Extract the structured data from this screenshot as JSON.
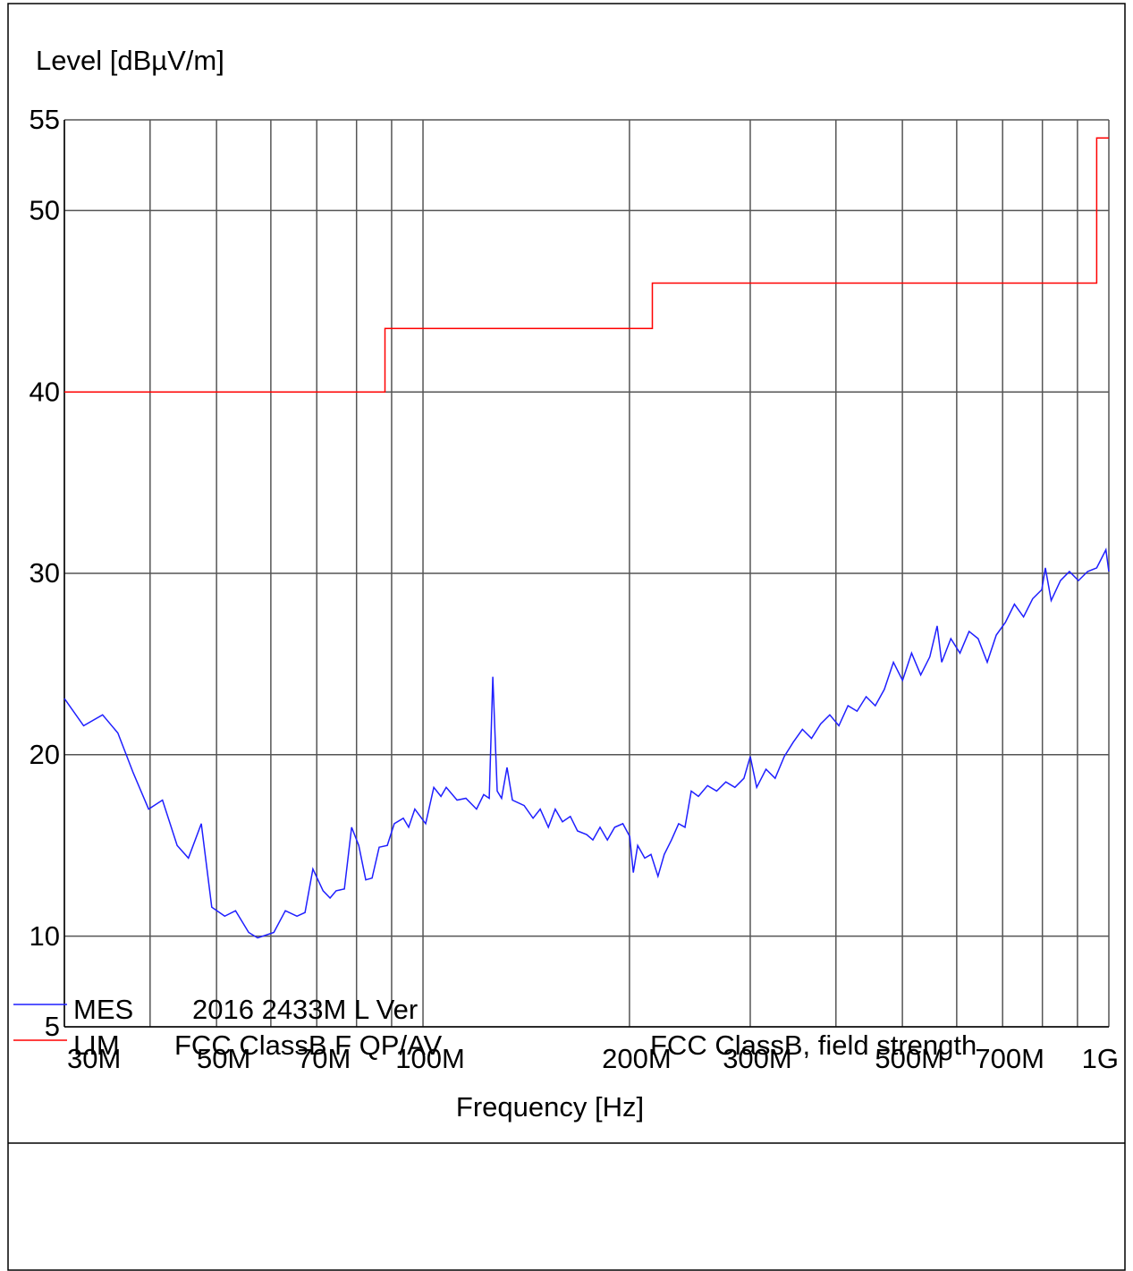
{
  "chart_data": {
    "type": "line",
    "y_label": "Level [dBµV/m]",
    "x_label": "Frequency [Hz]",
    "log_x": true,
    "grid": true,
    "xlim": [
      30000000.0,
      1000000000.0
    ],
    "xticks": [
      {
        "value": 30000000.0,
        "label": "30M"
      },
      {
        "value": 50000000.0,
        "label": "50M"
      },
      {
        "value": 70000000.0,
        "label": "70M"
      },
      {
        "value": 100000000.0,
        "label": "100M"
      },
      {
        "value": 200000000.0,
        "label": "200M"
      },
      {
        "value": 300000000.0,
        "label": "300M"
      },
      {
        "value": 500000000.0,
        "label": "500M"
      },
      {
        "value": 700000000.0,
        "label": "700M"
      },
      {
        "value": 1000000000.0,
        "label": "1G"
      }
    ],
    "minor_xticks": [
      40000000.0,
      60000000.0,
      80000000.0,
      90000000.0,
      400000000.0,
      600000000.0,
      800000000.0,
      900000000.0
    ],
    "ylim": [
      5,
      55
    ],
    "yticks": [
      5,
      10,
      20,
      30,
      40,
      50,
      55
    ],
    "series": [
      {
        "name": "MES",
        "description": "2016 2433M L Ver",
        "color": "#1f1fff",
        "x": [
          30000000.0,
          32000000.0,
          34100000.0,
          35900000.0,
          37800000.0,
          39800000.0,
          41700000.0,
          43800000.0,
          45500000.0,
          47500000.0,
          49200000.0,
          51400000.0,
          53300000.0,
          55700000.0,
          57400000.0,
          60600000.0,
          63000000.0,
          65500000.0,
          67300000.0,
          69100000.0,
          71500000.0,
          73200000.0,
          74700000.0,
          76800000.0,
          78700000.0,
          80600000.0,
          82500000.0,
          84300000.0,
          86300000.0,
          88700000.0,
          90800000.0,
          93600000.0,
          95300000.0,
          97300000.0,
          100900000.0,
          103700000.0,
          106200000.0,
          108100000.0,
          112100000.0,
          115500000.0,
          119700000.0,
          122600000.0,
          124900000.0,
          126400000.0,
          128300000.0,
          130200000.0,
          132600000.0,
          135000000.0,
          140400000.0,
          144700000.0,
          148200000.0,
          152300000.0,
          155900000.0,
          159700000.0,
          164000000.0,
          168000000.0,
          173200000.0,
          176900000.0,
          181200000.0,
          185700000.0,
          190300000.0,
          195600000.0,
          200200000.0,
          202600000.0,
          205600000.0,
          210500000.0,
          215000000.0,
          220100000.0,
          224800000.0,
          230300000.0,
          235900000.0,
          241000000.0,
          246100000.0,
          252100000.0,
          259900000.0,
          268000000.0,
          276400000.0,
          284900000.0,
          293700000.0,
          300000000.0,
          306600000.0,
          316300000.0,
          326100000.0,
          336300000.0,
          346700000.0,
          357400000.0,
          368500000.0,
          380000000.0,
          391800000.0,
          404000000.0,
          416500000.0,
          429400000.0,
          442700000.0,
          456500000.0,
          470600000.0,
          485200000.0,
          500200000.0,
          515700000.0,
          531700000.0,
          548200000.0,
          561900000.0,
          570600000.0,
          588300000.0,
          606600000.0,
          625400000.0,
          644800000.0,
          664700000.0,
          685300000.0,
          706500000.0,
          728400000.0,
          751000000.0,
          774300000.0,
          798300000.0,
          808000000.0,
          824000000.0,
          850000000.0,
          876000000.0,
          903000000.0,
          931000000.0,
          960000000.0,
          990000000.0,
          1000000000.0
        ],
        "values": [
          23.1,
          21.6,
          22.2,
          21.2,
          19.0,
          17.0,
          17.5,
          15.0,
          14.3,
          16.2,
          11.6,
          11.1,
          11.4,
          10.2,
          9.9,
          10.2,
          11.4,
          11.1,
          11.3,
          13.7,
          12.5,
          12.1,
          12.5,
          12.6,
          16.0,
          15.0,
          13.1,
          13.2,
          14.9,
          15.0,
          16.2,
          16.5,
          16.0,
          17.0,
          16.2,
          18.2,
          17.7,
          18.2,
          17.5,
          17.6,
          17.0,
          17.8,
          17.6,
          24.3,
          18.0,
          17.6,
          19.3,
          17.5,
          17.2,
          16.5,
          17.0,
          16.0,
          17.0,
          16.3,
          16.6,
          15.8,
          15.6,
          15.3,
          16.0,
          15.3,
          16.0,
          16.2,
          15.5,
          13.5,
          15.0,
          14.3,
          14.5,
          13.3,
          14.5,
          15.3,
          16.2,
          16.0,
          18.0,
          17.7,
          18.3,
          18.0,
          18.5,
          18.2,
          18.7,
          19.9,
          18.2,
          19.2,
          18.7,
          19.9,
          20.7,
          21.4,
          20.9,
          21.7,
          22.2,
          21.6,
          22.7,
          22.4,
          23.2,
          22.7,
          23.6,
          25.1,
          24.1,
          25.6,
          24.4,
          25.4,
          27.1,
          25.1,
          26.4,
          25.6,
          26.8,
          26.4,
          25.1,
          26.6,
          27.3,
          28.3,
          27.6,
          28.6,
          29.1,
          30.3,
          28.5,
          29.6,
          30.1,
          29.6,
          30.1,
          30.3,
          31.3,
          30.1
        ]
      },
      {
        "name": "LIM",
        "description": "FCC ClassB F QP/AV",
        "note": "FCC ClassB, field strength",
        "color": "#ff0000",
        "x": [
          30000000.0,
          88000000.0,
          88000000.0,
          216000000.0,
          216000000.0,
          960000000.0,
          960000000.0,
          1000000000.0
        ],
        "values": [
          40,
          40,
          43.5,
          43.5,
          46,
          46,
          54,
          54
        ]
      }
    ]
  }
}
